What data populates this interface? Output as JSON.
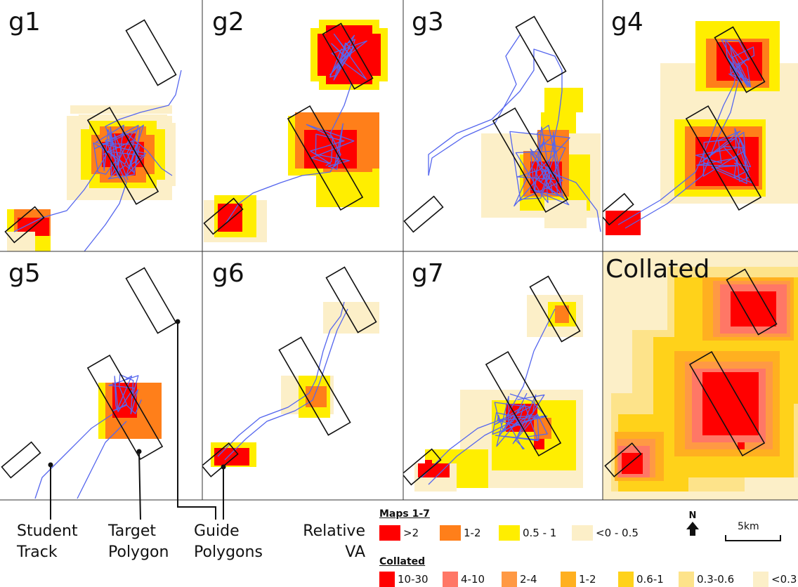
{
  "panels": [
    {
      "id": "g1",
      "label": "g1"
    },
    {
      "id": "g2",
      "label": "g2"
    },
    {
      "id": "g3",
      "label": "g3"
    },
    {
      "id": "g4",
      "label": "g4"
    },
    {
      "id": "g5",
      "label": "g5"
    },
    {
      "id": "g6",
      "label": "g6"
    },
    {
      "id": "g7",
      "label": "g7"
    },
    {
      "id": "collated",
      "label": "Collated"
    }
  ],
  "callouts": {
    "student_track": [
      "Student",
      "Track"
    ],
    "target_polygon": [
      "Target",
      "Polygon"
    ],
    "guide_polygons": [
      "Guide",
      "Polygons"
    ]
  },
  "legend": {
    "title": [
      "Relative",
      "VA"
    ],
    "maps_heading": "Maps 1-7",
    "maps_items": [
      {
        "label": ">2",
        "color": "#ff0000"
      },
      {
        "label": "1-2",
        "color": "#ff7f1a"
      },
      {
        "label": "0.5 - 1",
        "color": "#ffee00"
      },
      {
        "label": "<0 - 0.5",
        "color": "#fcefc8"
      }
    ],
    "collated_heading": "Collated",
    "collated_items": [
      {
        "label": "10-30",
        "color": "#ff0000"
      },
      {
        "label": "4-10",
        "color": "#ff7766"
      },
      {
        "label": "2-4",
        "color": "#ff9944"
      },
      {
        "label": "1-2",
        "color": "#ffb020"
      },
      {
        "label": "0.6-1",
        "color": "#ffd21a"
      },
      {
        "label": "0.3-0.6",
        "color": "#fde38a"
      },
      {
        "label": "<0.3",
        "color": "#fcefc8"
      }
    ]
  },
  "north_label": "N",
  "scale_label": "5km",
  "colors": {
    "track": "#5566ee",
    "polygon_outline": "#111111",
    "divider": "#333333"
  }
}
